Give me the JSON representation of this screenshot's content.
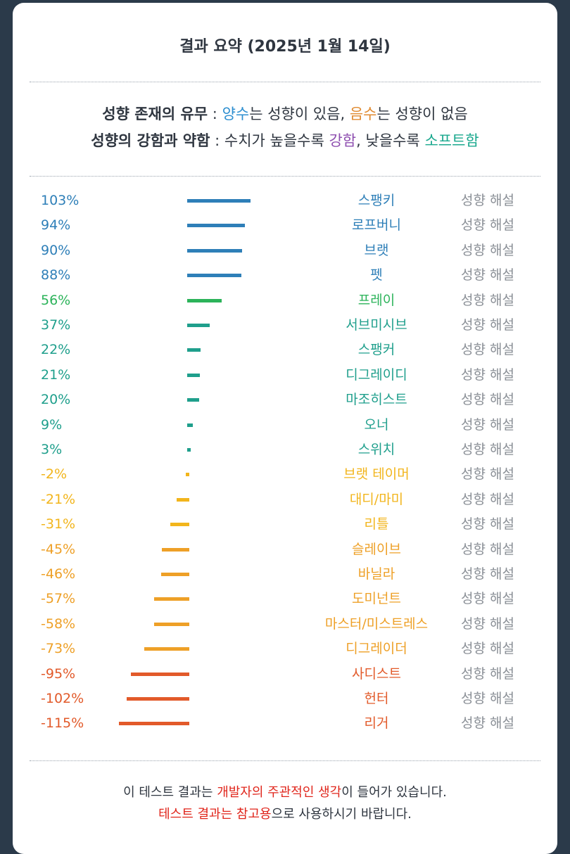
{
  "title": "결과 요약 (2025년 1월 14일)",
  "legend": {
    "line1": {
      "label": "성향 존재의 유무",
      "sep": " : ",
      "positive": "양수",
      "mid1": "는 성향이 있음, ",
      "negative": "음수",
      "mid2": "는 성향이 없음"
    },
    "line2": {
      "label": "성향의 강함과 약함",
      "sep": " : 수치가 높을수록 ",
      "strong": "강함",
      "mid": ", 낮을수록 ",
      "soft": "소프트함"
    }
  },
  "colors": {
    "blue": "#2e7fb8",
    "green": "#2cb35a",
    "teal": "#1f9f8c",
    "yellow": "#f2b51c",
    "amber": "#eea027",
    "orange": "#e25a2a",
    "positive_text": "#2e8fd0",
    "negative_text": "#e08a30",
    "strong_text": "#8e4fb0",
    "soft_text": "#1aa88e",
    "footer_red": "#e0251b"
  },
  "explain_label": "성향 해설",
  "chart_data": {
    "type": "bar",
    "categories": [
      "스팽키",
      "로프버니",
      "브랫",
      "펫",
      "프레이",
      "서브미시브",
      "스팽커",
      "디그레이디",
      "마조히스트",
      "오너",
      "스위치",
      "브랫 테이머",
      "대디/마미",
      "리틀",
      "슬레이브",
      "바닐라",
      "도미넌트",
      "마스터/미스트레스",
      "디그레이더",
      "사디스트",
      "헌터",
      "리거"
    ],
    "values": [
      103,
      94,
      90,
      88,
      56,
      37,
      22,
      21,
      20,
      9,
      3,
      -2,
      -21,
      -31,
      -45,
      -46,
      -57,
      -58,
      -73,
      -95,
      -102,
      -115
    ],
    "labels": [
      "103%",
      "94%",
      "90%",
      "88%",
      "56%",
      "37%",
      "22%",
      "21%",
      "20%",
      "9%",
      "3%",
      "-2%",
      "-21%",
      "-31%",
      "-45%",
      "-46%",
      "-57%",
      "-58%",
      "-73%",
      "-95%",
      "-102%",
      "-115%"
    ],
    "colors": [
      "blue",
      "blue",
      "blue",
      "blue",
      "green",
      "teal",
      "teal",
      "teal",
      "teal",
      "teal",
      "teal",
      "yellow",
      "yellow",
      "yellow",
      "amber",
      "amber",
      "amber",
      "amber",
      "amber",
      "orange",
      "orange",
      "orange"
    ],
    "unit": "%"
  },
  "footer": {
    "line1": {
      "a": "이 테스트 결과는 ",
      "b": "개발자의 주관적인 생각",
      "c": "이 들어가 있습니다."
    },
    "line2": {
      "a": "테스트 결과는 참고용",
      "b": "으로 사용하시기 바랍니다."
    }
  }
}
